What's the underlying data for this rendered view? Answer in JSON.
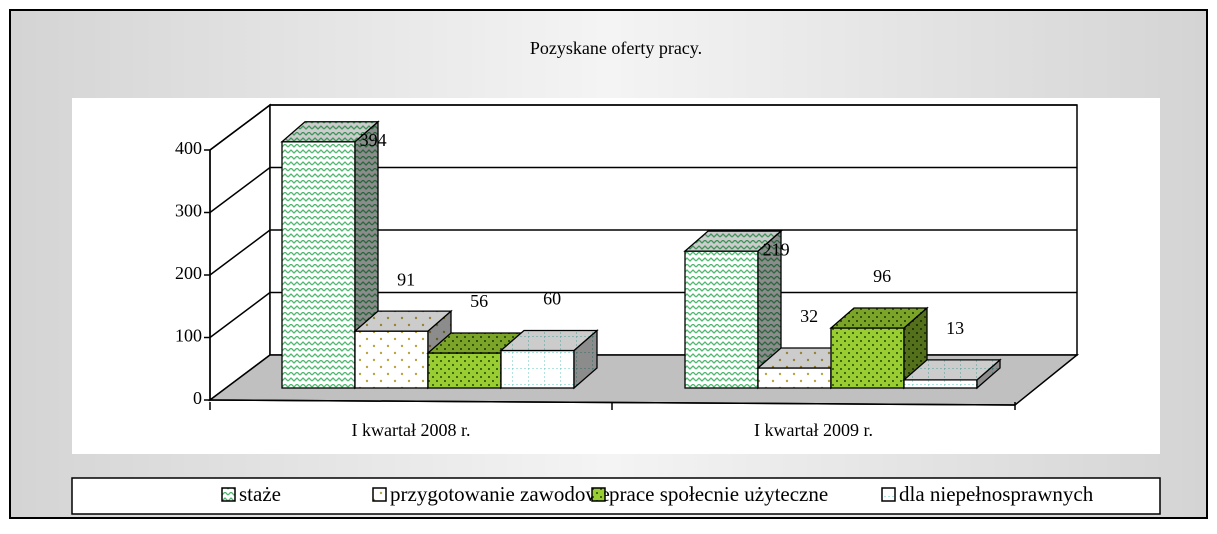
{
  "chart_data": {
    "type": "bar3d",
    "title": "Pozyskane oferty pracy.",
    "categories": [
      "I kwartał 2008 r.",
      "I kwartał 2009 r."
    ],
    "series": [
      {
        "name": "staże",
        "color": "#4fb870",
        "values": [
          394,
          219
        ]
      },
      {
        "name": "przygotowanie zawodowe",
        "color": "#b9a640",
        "values": [
          91,
          32
        ]
      },
      {
        "name": "prace społecnie użyteczne",
        "color": "#9acd32",
        "values": [
          56,
          96
        ]
      },
      {
        "name": "dla niepełnosprawnych",
        "color": "#5fc8c0",
        "values": [
          60,
          13
        ]
      }
    ],
    "ylim": [
      0,
      400
    ],
    "yticks": [
      0,
      100,
      200,
      300,
      400
    ],
    "grid": true,
    "legend": "bottom"
  }
}
